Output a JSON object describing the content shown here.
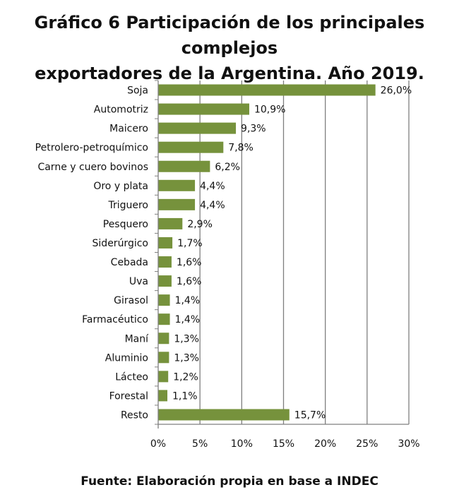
{
  "title": {
    "line1": "Gráfico 6 Participación de los principales complejos",
    "line2": "exportadores de la Argentina. Año 2019."
  },
  "source": "Fuente: Elaboración propia en base a INDEC",
  "colors": {
    "bar": "#76923c",
    "grid": "#7f7f7f",
    "text": "#111111"
  },
  "chart_data": {
    "type": "bar",
    "orientation": "horizontal",
    "categories": [
      "Soja",
      "Automotriz",
      "Maicero",
      "Petrolero-petroquímico",
      "Carne y cuero bovinos",
      "Oro y plata",
      "Triguero",
      "Pesquero",
      "Siderúrgico",
      "Cebada",
      "Uva",
      "Girasol",
      "Farmacéutico",
      "Maní",
      "Aluminio",
      "Lácteo",
      "Forestal",
      "Resto"
    ],
    "values": [
      26.0,
      10.9,
      9.3,
      7.8,
      6.2,
      4.4,
      4.4,
      2.9,
      1.7,
      1.6,
      1.6,
      1.4,
      1.4,
      1.3,
      1.3,
      1.2,
      1.1,
      15.7
    ],
    "value_labels": [
      "26,0%",
      "10,9%",
      "9,3%",
      "7,8%",
      "6,2%",
      "4,4%",
      "4,4%",
      "2,9%",
      "1,7%",
      "1,6%",
      "1,6%",
      "1,4%",
      "1,4%",
      "1,3%",
      "1,3%",
      "1,2%",
      "1,1%",
      "15,7%"
    ],
    "xlim": [
      0,
      30
    ],
    "xticks": [
      0,
      5,
      10,
      15,
      20,
      25,
      30
    ],
    "xtick_labels": [
      "0%",
      "5%",
      "10%",
      "15%",
      "20%",
      "25%",
      "30%"
    ],
    "grid": "vertical",
    "legend": "none"
  }
}
